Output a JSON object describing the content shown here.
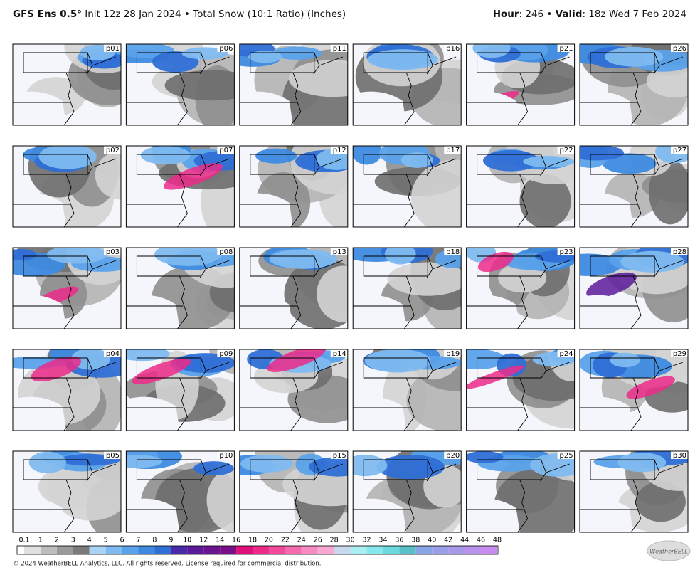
{
  "header": {
    "model": "GFS Ens 0.5°",
    "run": "Init 12z 28 Jan 2024 • Total Snow (10:1 Ratio) (Inches)",
    "hour_label": "Hour",
    "hour_value": ": 246 • ",
    "valid_label": "Valid",
    "valid_value": ": 18z Wed 7 Feb 2024"
  },
  "panels": [
    "p01",
    "p02",
    "p03",
    "p04",
    "p05",
    "p06",
    "p07",
    "p08",
    "p09",
    "p10",
    "p11",
    "p12",
    "p13",
    "p14",
    "p15",
    "p16",
    "p17",
    "p18",
    "p19",
    "p20",
    "p21",
    "p22",
    "p23",
    "p24",
    "p25",
    "p26",
    "p27",
    "p28",
    "p29",
    "p30"
  ],
  "colorbar": {
    "labels": [
      "0.1",
      "1",
      "2",
      "3",
      "4",
      "5",
      "6",
      "7",
      "8",
      "9",
      "10",
      "12",
      "14",
      "16",
      "18",
      "20",
      "22",
      "24",
      "26",
      "28",
      "30",
      "32",
      "34",
      "36",
      "38",
      "40",
      "42",
      "44",
      "46",
      "48"
    ],
    "colors": [
      "#ffffff",
      "#e0e0e0",
      "#bdbdbd",
      "#9a9a9a",
      "#7a7a7a",
      "#a9d4f5",
      "#7fbaf0",
      "#5aa2ea",
      "#3d8ae0",
      "#2f6fd6",
      "#4a2aa8",
      "#5a1a9a",
      "#6a1590",
      "#7a1088",
      "#e0107a",
      "#ec2a8a",
      "#f24a9a",
      "#f46aae",
      "#f78ac2",
      "#f9a8d2",
      "#c8d8ee",
      "#a8eef2",
      "#86e8ec",
      "#6ad8dc",
      "#58c0c8",
      "#8aa4e8",
      "#9a9ee8",
      "#a898ea",
      "#b892ec",
      "#c88cf0"
    ]
  },
  "footer": "© 2024 WeatherBELL Analytics, LLC. All rights reserved. License required for commercial distribution.",
  "logo": "WeatherBELL"
}
